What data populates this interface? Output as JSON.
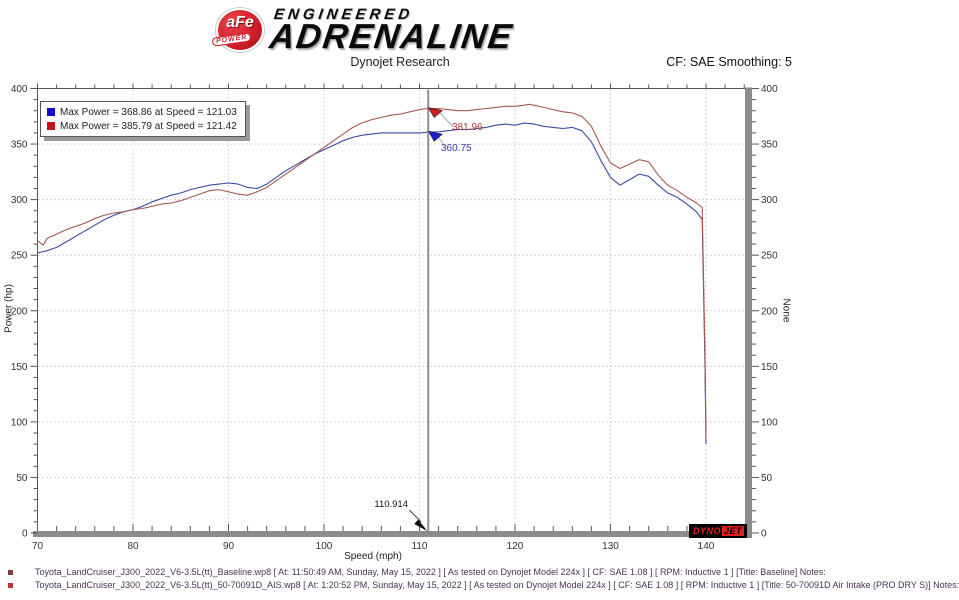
{
  "header": {
    "brand": {
      "badge_top": "aFe",
      "badge_bottom": "POWER",
      "line1": "ENGINEERED",
      "line2": "ADRENALINE"
    },
    "subtitle": "Dynojet Research",
    "smoothing": "CF: SAE Smoothing: 5"
  },
  "chart_data": {
    "type": "line",
    "title": "Dynojet Research",
    "xlabel": "Speed (mph)",
    "ylabel_left": "Power (hp)",
    "ylabel_right": "None",
    "xlim": [
      70,
      144.4
    ],
    "ylim": [
      0,
      400
    ],
    "x_major_ticks": [
      70,
      80,
      90,
      100,
      110,
      120,
      130,
      140
    ],
    "x_minor_step": 2,
    "y_major_ticks": [
      0,
      50,
      100,
      150,
      200,
      250,
      300,
      350,
      400
    ],
    "y_minor_step": 10,
    "grid": "dotted at major ticks",
    "legend": {
      "position": "top-left",
      "entries": [
        {
          "color": "#1111cc",
          "label": "Max Power = 368.86 at Speed = 121.03"
        },
        {
          "color": "#cc1111",
          "label": "Max Power = 385.79 at Speed = 121.42"
        }
      ]
    },
    "cursor": {
      "x": 110.914,
      "x_label": "110.914",
      "red_value": "381.96",
      "blue_value": "360.75"
    },
    "series": [
      {
        "name": "Baseline",
        "color": "#3b4a9e",
        "points": [
          [
            70,
            252
          ],
          [
            71,
            254
          ],
          [
            72,
            257
          ],
          [
            73,
            262
          ],
          [
            74,
            267
          ],
          [
            75,
            272
          ],
          [
            76,
            277
          ],
          [
            77,
            282
          ],
          [
            78,
            286
          ],
          [
            79,
            289
          ],
          [
            80,
            291
          ],
          [
            81,
            294
          ],
          [
            82,
            298
          ],
          [
            83,
            301
          ],
          [
            84,
            304
          ],
          [
            85,
            306
          ],
          [
            86,
            309
          ],
          [
            87,
            311
          ],
          [
            88,
            313
          ],
          [
            89,
            314
          ],
          [
            90,
            315
          ],
          [
            91,
            314
          ],
          [
            92,
            311
          ],
          [
            93,
            310
          ],
          [
            94,
            314
          ],
          [
            95,
            320
          ],
          [
            96,
            326
          ],
          [
            97,
            331
          ],
          [
            98,
            336
          ],
          [
            99,
            341
          ],
          [
            100,
            345
          ],
          [
            101,
            349
          ],
          [
            102,
            353
          ],
          [
            103,
            356
          ],
          [
            104,
            358
          ],
          [
            105,
            359
          ],
          [
            106,
            360
          ],
          [
            107,
            360
          ],
          [
            108,
            360
          ],
          [
            109,
            360
          ],
          [
            110,
            360
          ],
          [
            110.914,
            360.75
          ],
          [
            112,
            361
          ],
          [
            113,
            362
          ],
          [
            114,
            363
          ],
          [
            115,
            363
          ],
          [
            116,
            364
          ],
          [
            117,
            365
          ],
          [
            118,
            367
          ],
          [
            119,
            368
          ],
          [
            120,
            367
          ],
          [
            121.03,
            368.86
          ],
          [
            122,
            368
          ],
          [
            123,
            366
          ],
          [
            124,
            365
          ],
          [
            125,
            364
          ],
          [
            126,
            365
          ],
          [
            127,
            362
          ],
          [
            128,
            352
          ],
          [
            129,
            335
          ],
          [
            130,
            320
          ],
          [
            131,
            313
          ],
          [
            132,
            318
          ],
          [
            133,
            323
          ],
          [
            134,
            321
          ],
          [
            135,
            313
          ],
          [
            136,
            306
          ],
          [
            137,
            302
          ],
          [
            138,
            296
          ],
          [
            139,
            289
          ],
          [
            139.6,
            282
          ],
          [
            139.9,
            150
          ],
          [
            140,
            80
          ]
        ]
      },
      {
        "name": "50-70091D Air Intake (PRO DRY S)",
        "color": "#a35b52",
        "points": [
          [
            70,
            263
          ],
          [
            70.6,
            259
          ],
          [
            71,
            265
          ],
          [
            72,
            269
          ],
          [
            73,
            273
          ],
          [
            74,
            276
          ],
          [
            75,
            279
          ],
          [
            76,
            283
          ],
          [
            77,
            286
          ],
          [
            78,
            288
          ],
          [
            79,
            289
          ],
          [
            80,
            291
          ],
          [
            81,
            292
          ],
          [
            82,
            294
          ],
          [
            83,
            296
          ],
          [
            84,
            297
          ],
          [
            85,
            299
          ],
          [
            86,
            302
          ],
          [
            87,
            305
          ],
          [
            88,
            308
          ],
          [
            89,
            309
          ],
          [
            90,
            307
          ],
          [
            91,
            305
          ],
          [
            92,
            304
          ],
          [
            93,
            307
          ],
          [
            94,
            311
          ],
          [
            95,
            317
          ],
          [
            96,
            323
          ],
          [
            97,
            329
          ],
          [
            98,
            335
          ],
          [
            99,
            341
          ],
          [
            100,
            347
          ],
          [
            101,
            353
          ],
          [
            102,
            359
          ],
          [
            103,
            365
          ],
          [
            104,
            369
          ],
          [
            105,
            372
          ],
          [
            106,
            374
          ],
          [
            107,
            376
          ],
          [
            108,
            377
          ],
          [
            109,
            379
          ],
          [
            110,
            381
          ],
          [
            110.914,
            381.96
          ],
          [
            112,
            382
          ],
          [
            113,
            381
          ],
          [
            114,
            380
          ],
          [
            115,
            380
          ],
          [
            116,
            381
          ],
          [
            117,
            382
          ],
          [
            118,
            383
          ],
          [
            119,
            384
          ],
          [
            120,
            384
          ],
          [
            121,
            385
          ],
          [
            121.42,
            385.79
          ],
          [
            122,
            385
          ],
          [
            123,
            383
          ],
          [
            124,
            381
          ],
          [
            125,
            379
          ],
          [
            126,
            378
          ],
          [
            127,
            375
          ],
          [
            128,
            366
          ],
          [
            129,
            348
          ],
          [
            130,
            333
          ],
          [
            131,
            328
          ],
          [
            132,
            332
          ],
          [
            133,
            336
          ],
          [
            134,
            334
          ],
          [
            135,
            322
          ],
          [
            136,
            313
          ],
          [
            137,
            308
          ],
          [
            138,
            302
          ],
          [
            139,
            297
          ],
          [
            139.6,
            293
          ],
          [
            139.9,
            160
          ],
          [
            140,
            85
          ]
        ]
      }
    ]
  },
  "watermark": {
    "dyno": "DYNO",
    "jet": "JET"
  },
  "footer": {
    "runs": [
      {
        "bullet_color": "#8a3a3a",
        "text": "Toyota_LandCruiser_J300_2022_V6-3.5L(tt)_Baseline.wp8 [ At: 11:50:49 AM, Sunday, May 15, 2022 ] [ As tested on Dynojet Model 224x ] [ CF: SAE 1.08 ] [ RPM: Inductive 1 ] [Title: Baseline]  Notes:"
      },
      {
        "bullet_color": "#c03333",
        "text": "Toyota_LandCruiser_J300_2022_V6-3.5L(tt)_50-70091D_AIS.wp8 [ At: 1:20:52 PM, Sunday, May 15, 2022 ] [ As tested on Dynojet Model 224x ] [ CF: SAE 1.08 ] [ RPM: Inductive 1 ] [Title: 50-70091D Air Intake (PRO DRY S)]  Notes:"
      }
    ]
  }
}
